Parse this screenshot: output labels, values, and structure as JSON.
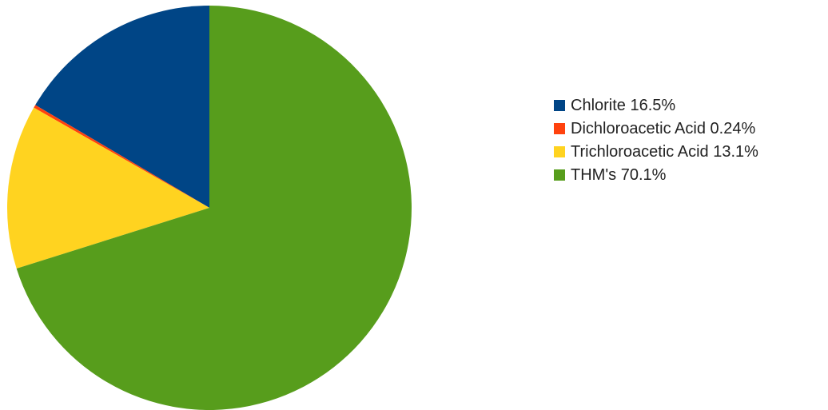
{
  "chart_data": {
    "type": "pie",
    "start_angle_deg": 0,
    "direction": "counterclockwise",
    "legend_position": "right",
    "slices": [
      {
        "label": "Chlorite 16.5%",
        "category": "Chlorite",
        "value": 16.5,
        "color": "#004586"
      },
      {
        "label": "Dichloroacetic Acid 0.24%",
        "category": "Dichloroacetic Acid",
        "value": 0.24,
        "color": "#ff420e"
      },
      {
        "label": "Trichloroacetic Acid 13.1%",
        "category": "Trichloroacetic Acid",
        "value": 13.1,
        "color": "#ffd320"
      },
      {
        "label": "THM's 70.1%",
        "category": "THM's",
        "value": 70.1,
        "color": "#579d1c"
      }
    ]
  }
}
